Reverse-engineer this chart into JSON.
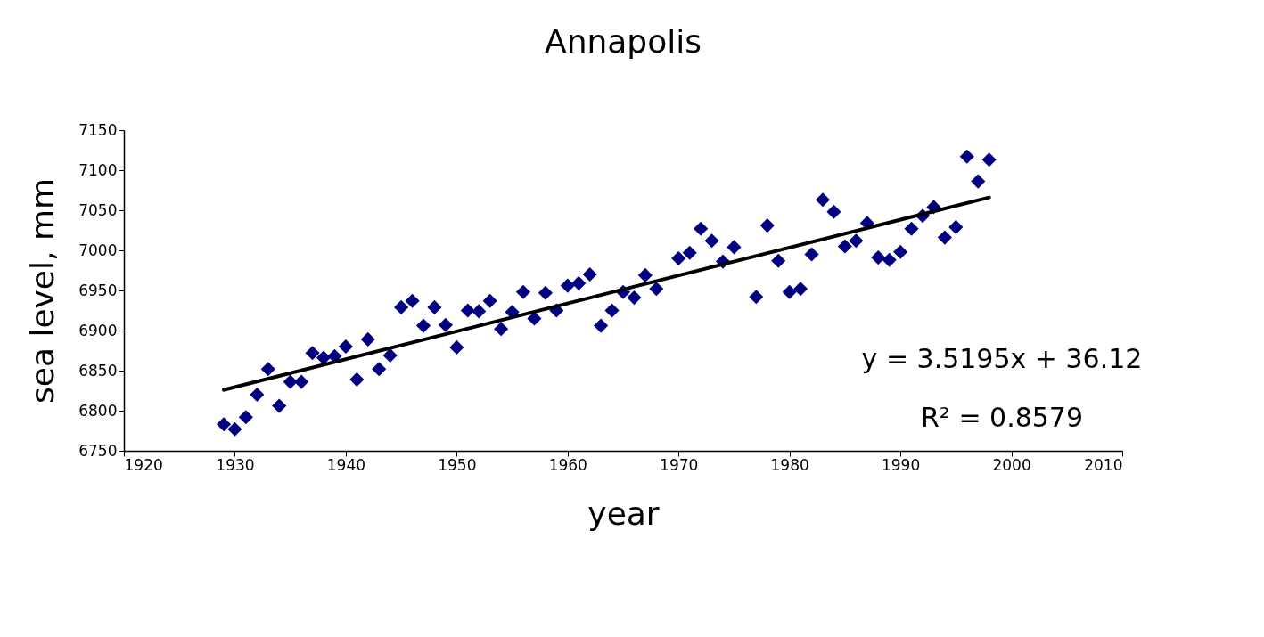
{
  "chart_data": {
    "type": "scatter",
    "title": "Annapolis",
    "xlabel": "year",
    "ylabel": "sea level, mm",
    "annotations": [
      "y = 3.5195x + 36.12",
      "R² = 0.8579"
    ],
    "xlim": [
      1920,
      2010
    ],
    "xticks": [
      1920,
      1930,
      1940,
      1950,
      1960,
      1970,
      1980,
      1990,
      2000,
      2010
    ],
    "ylim": [
      6750,
      7150
    ],
    "yticks": [
      6750,
      6800,
      6850,
      6900,
      6950,
      7000,
      7050,
      7100,
      7150
    ],
    "grid": false,
    "marker": "diamond",
    "series": [
      {
        "color": "#000080",
        "x": [
          1929,
          1930,
          1931,
          1932,
          1933,
          1934,
          1935,
          1936,
          1937,
          1938,
          1939,
          1940,
          1941,
          1942,
          1943,
          1944,
          1945,
          1946,
          1947,
          1948,
          1949,
          1950,
          1951,
          1952,
          1953,
          1954,
          1955,
          1956,
          1957,
          1958,
          1959,
          1960,
          1961,
          1962,
          1963,
          1964,
          1965,
          1966,
          1967,
          1968,
          1970,
          1971,
          1972,
          1973,
          1974,
          1975,
          1977,
          1978,
          1979,
          1980,
          1981,
          1982,
          1983,
          1984,
          1985,
          1986,
          1987,
          1988,
          1989,
          1990,
          1991,
          1992,
          1993,
          1994,
          1995,
          1996,
          1997,
          1998
        ],
        "values": [
          6783,
          6777,
          6792,
          6820,
          6852,
          6806,
          6836,
          6836,
          6872,
          6866,
          6868,
          6880,
          6839,
          6889,
          6852,
          6869,
          6929,
          6937,
          6906,
          6929,
          6907,
          6879,
          6925,
          6924,
          6937,
          6902,
          6923,
          6948,
          6915,
          6947,
          6925,
          6956,
          6959,
          6970,
          6906,
          6925,
          6948,
          6941,
          6969,
          6952,
          6990,
          6997,
          7027,
          7012,
          6986,
          7004,
          6942,
          7031,
          6987,
          6948,
          6952,
          6995,
          7063,
          7048,
          7005,
          7012,
          7034,
          6991,
          6988,
          6998,
          7027,
          7043,
          7054,
          7016,
          7029,
          7117,
          7086,
          7113
        ]
      },
      {
        "type": "line",
        "color": "#000000",
        "line_style": "solid",
        "marker": "none",
        "x": [
          1929,
          1998
        ],
        "values": [
          6826,
          7066
        ]
      }
    ]
  }
}
